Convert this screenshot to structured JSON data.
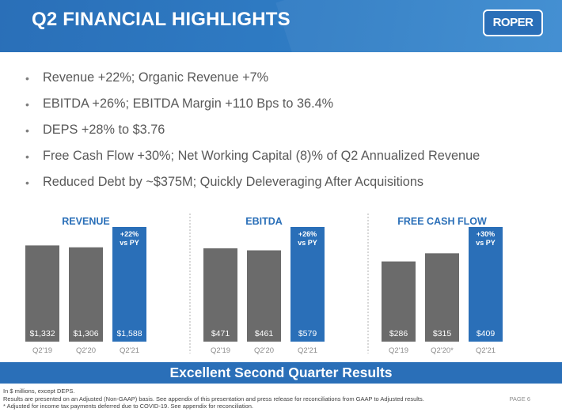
{
  "header": {
    "title": "Q2 FINANCIAL HIGHLIGHTS",
    "logo_text": "ROPER"
  },
  "bullets": [
    "Revenue +22%; Organic Revenue +7%",
    "EBITDA +26%; EBITDA Margin +110 Bps to 36.4%",
    "DEPS +28% to $3.76",
    "Free Cash Flow +30%; Net Working Capital (8)% of Q2 Annualized Revenue",
    "Reduced Debt by ~$375M; Quickly Deleveraging After Acquisitions"
  ],
  "chart_data": [
    {
      "type": "bar",
      "title": "REVENUE",
      "categories": [
        "Q2'19",
        "Q2'20",
        "Q2'21"
      ],
      "values": [
        1332,
        1306,
        1588
      ],
      "value_labels": [
        "$1,332",
        "$1,306",
        "$1,588"
      ],
      "annotation": [
        "+22%",
        "vs PY"
      ],
      "unit": "$ millions"
    },
    {
      "type": "bar",
      "title": "EBITDA",
      "categories": [
        "Q2'19",
        "Q2'20",
        "Q2'21"
      ],
      "values": [
        471,
        461,
        579
      ],
      "value_labels": [
        "$471",
        "$461",
        "$579"
      ],
      "annotation": [
        "+26%",
        "vs PY"
      ],
      "unit": "$ millions"
    },
    {
      "type": "bar",
      "title": "FREE CASH FLOW",
      "categories": [
        "Q2'19",
        "Q2'20*",
        "Q2'21"
      ],
      "values": [
        286,
        315,
        409
      ],
      "value_labels": [
        "$286",
        "$315",
        "$409"
      ],
      "annotation": [
        "+30%",
        "vs PY"
      ],
      "unit": "$ millions"
    }
  ],
  "colors": {
    "prior_bar": "#6b6b6b",
    "current_bar": "#2a6fb8",
    "chart_title": "#2a6fb8",
    "tick": "#8c8c8c"
  },
  "bottom_banner": "Excellent Second Quarter Results",
  "footnotes": [
    "In $ millions, except DEPS.",
    "Results are presented on an Adjusted (Non-GAAP) basis. See appendix of this presentation and press release for reconciliations from GAAP to Adjusted results.",
    "* Adjusted for income tax payments deferred due to COVID-19. See appendix for reconciliation."
  ],
  "page_number": "PAGE 6"
}
